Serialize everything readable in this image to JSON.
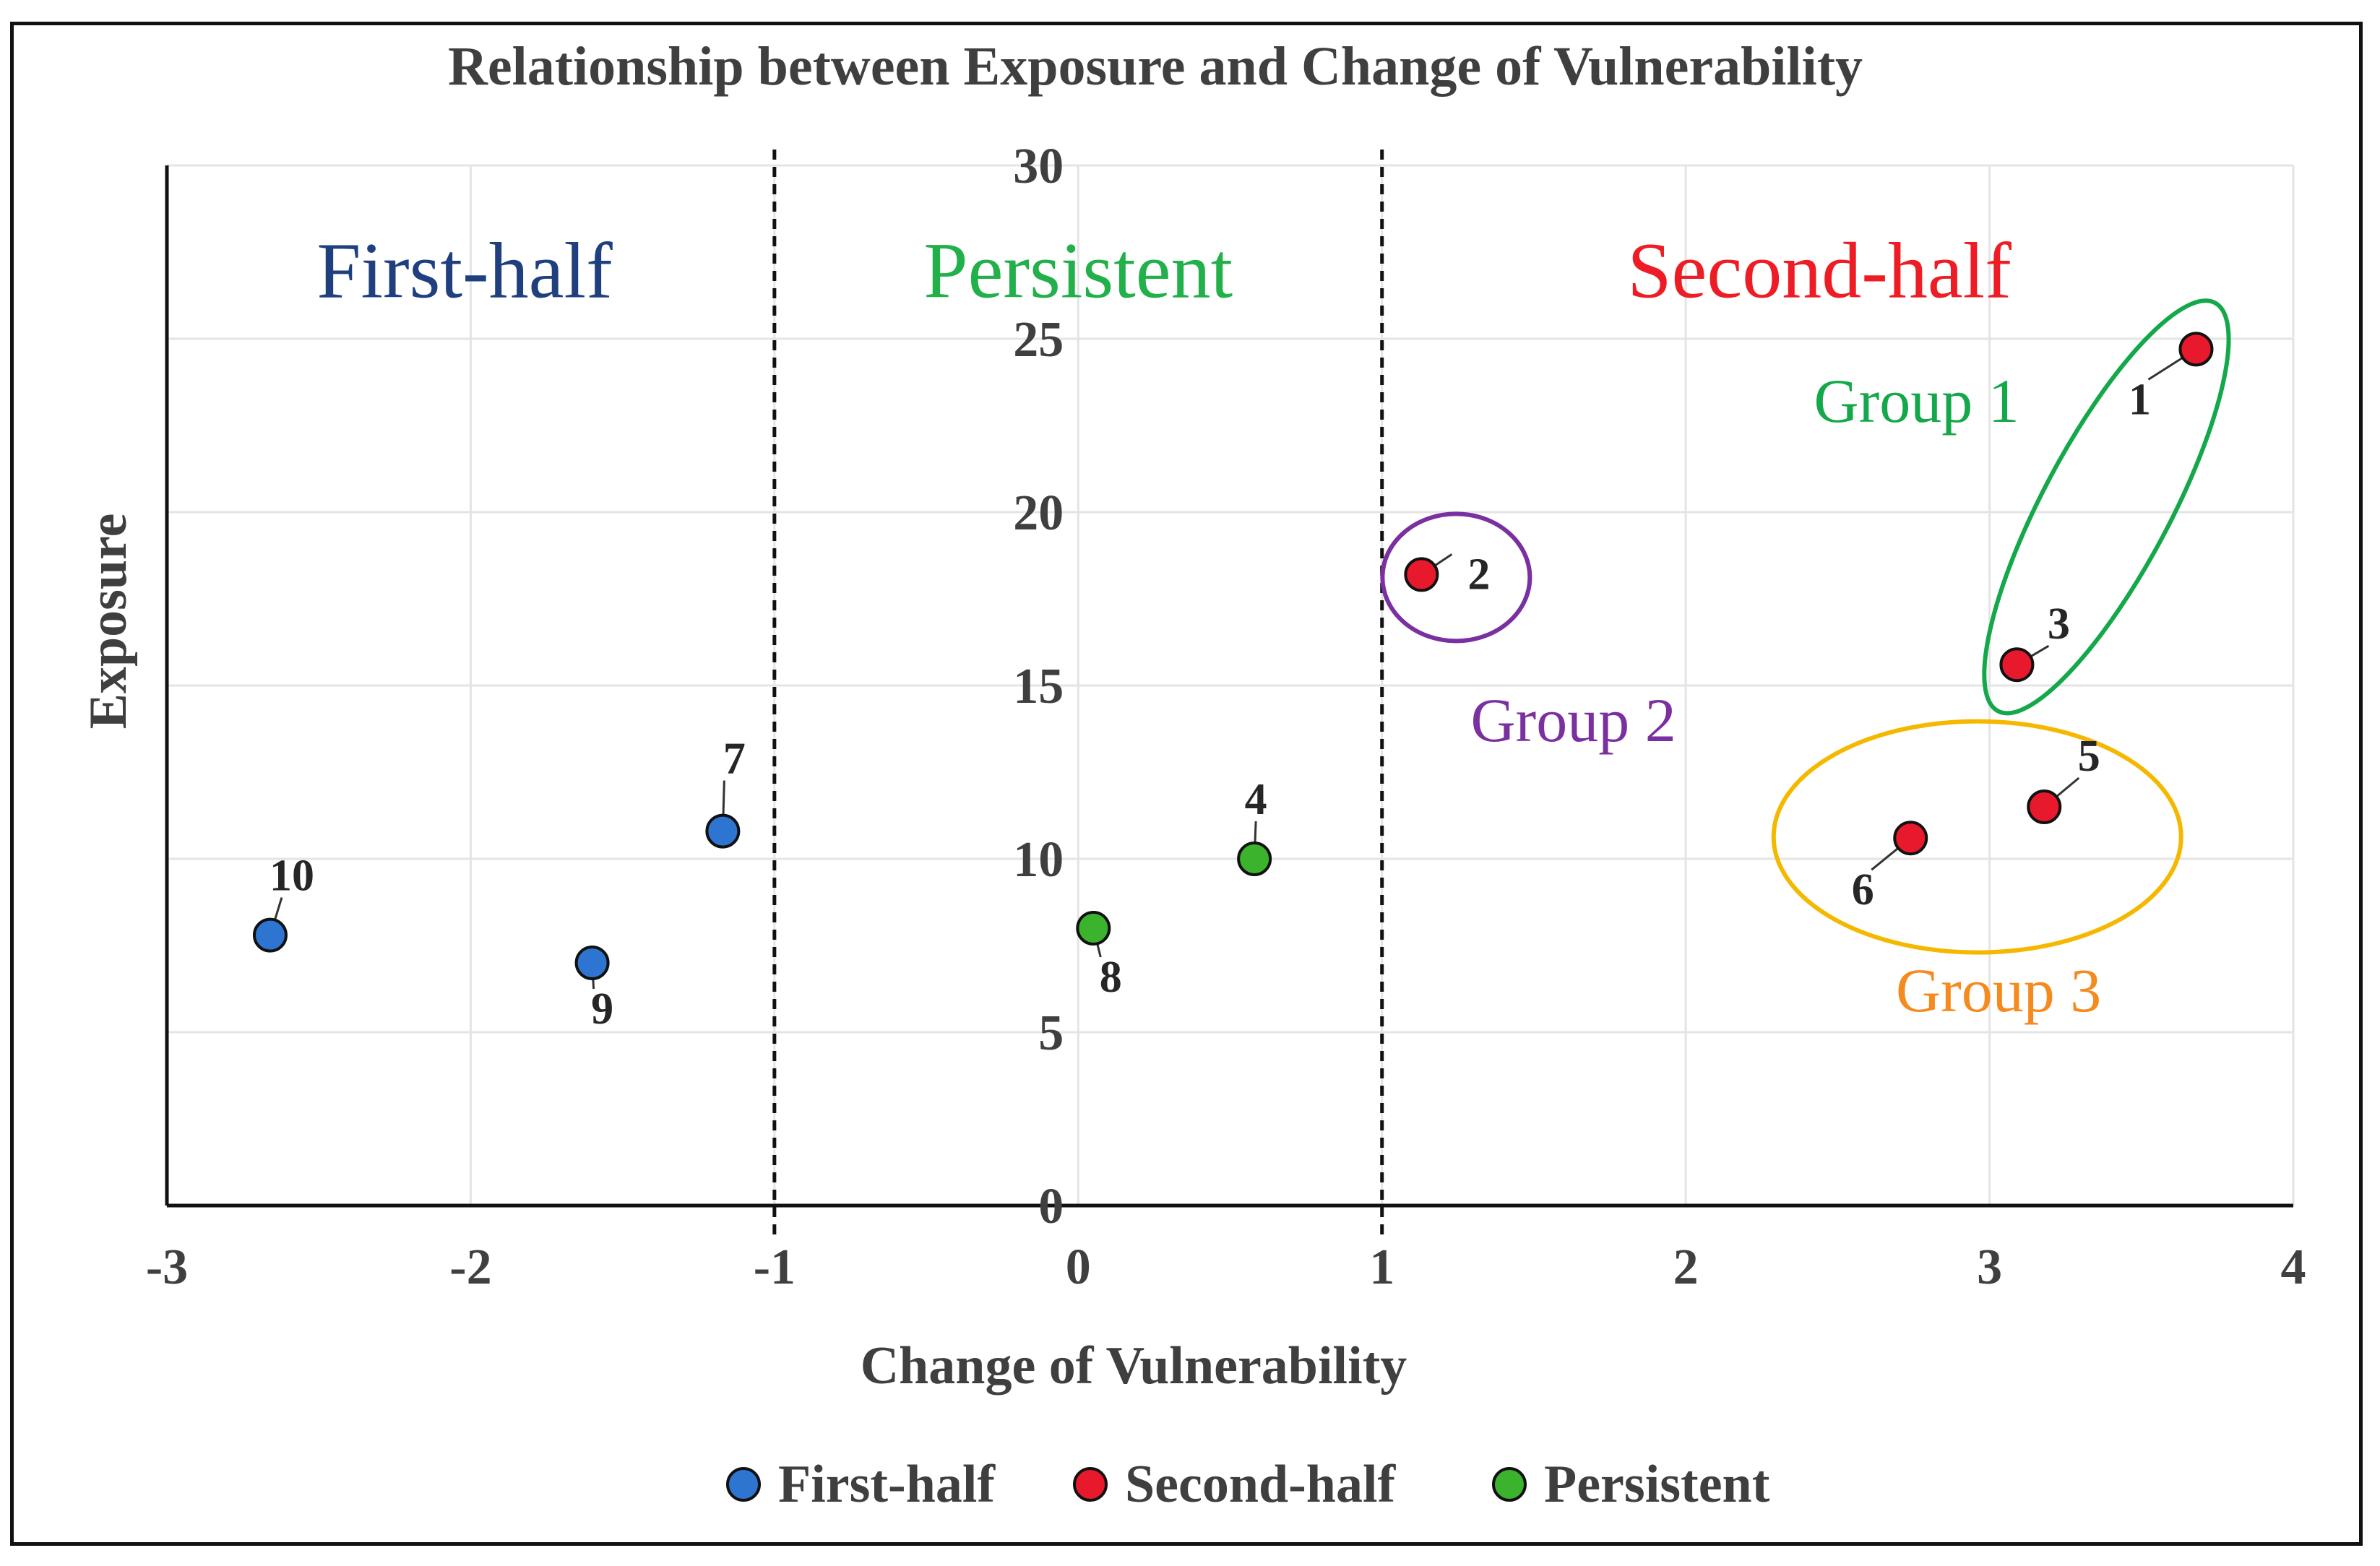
{
  "chart_data": {
    "type": "scatter",
    "title": "Relationship between Exposure and Change of Vulnerability",
    "xlabel": "Change of Vulnerability",
    "ylabel": "Exposure",
    "xlim": [
      -3,
      4
    ],
    "ylim": [
      0,
      30
    ],
    "x_ticks": [
      "-3",
      "-2",
      "-1",
      "0",
      "1",
      "2",
      "3",
      "4"
    ],
    "y_ticks": [
      "0",
      "5",
      "10",
      "15",
      "20",
      "25",
      "30"
    ],
    "grid": true,
    "divider_lines_x": [
      -1,
      1
    ],
    "regions": [
      {
        "label": "First-half",
        "color": "#1f3f7f"
      },
      {
        "label": "Persistent",
        "color": "#22b04b"
      },
      {
        "label": "Second-half",
        "color": "#ee1c24"
      }
    ],
    "series": [
      {
        "name": "First-half",
        "color": "#2e75d2",
        "points": [
          {
            "id": "10",
            "x": -2.66,
            "y": 7.8
          },
          {
            "id": "9",
            "x": -1.6,
            "y": 7.0
          },
          {
            "id": "7",
            "x": -1.17,
            "y": 10.8
          }
        ]
      },
      {
        "name": "Second-half",
        "color": "#e8192c",
        "points": [
          {
            "id": "2",
            "x": 1.13,
            "y": 18.2
          },
          {
            "id": "1",
            "x": 3.68,
            "y": 24.7
          },
          {
            "id": "3",
            "x": 3.09,
            "y": 15.6
          },
          {
            "id": "5",
            "x": 3.18,
            "y": 11.5
          },
          {
            "id": "6",
            "x": 2.74,
            "y": 10.6
          }
        ]
      },
      {
        "name": "Persistent",
        "color": "#3cb32d",
        "points": [
          {
            "id": "4",
            "x": 0.58,
            "y": 10.0
          },
          {
            "id": "8",
            "x": 0.05,
            "y": 8.0
          }
        ]
      }
    ],
    "groups": [
      {
        "label": "Group 1",
        "color": "#14a84a",
        "members": [
          "1",
          "3"
        ]
      },
      {
        "label": "Group 2",
        "color": "#7a30a0",
        "members": [
          "2"
        ]
      },
      {
        "label": "Group 3",
        "color": "#f5b800",
        "label_color": "#f58a1f",
        "members": [
          "5",
          "6"
        ]
      }
    ],
    "legend": {
      "position": "bottom",
      "entries": [
        "First-half",
        "Second-half",
        "Persistent"
      ]
    }
  }
}
